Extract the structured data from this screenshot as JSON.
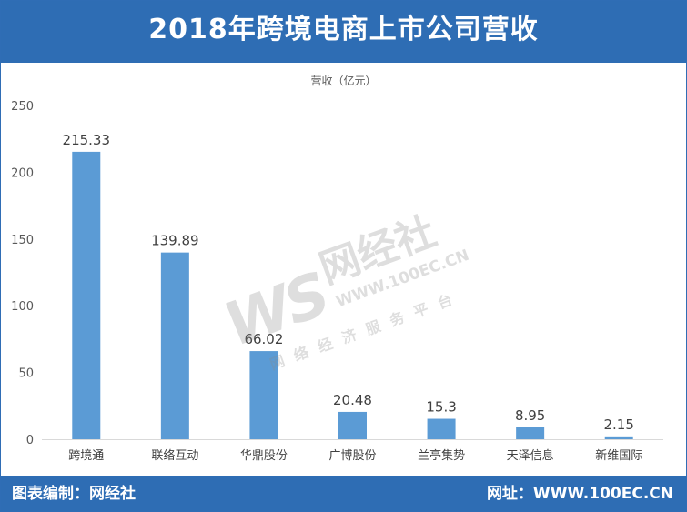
{
  "header": {
    "title": "2018年跨境电商上市公司营收"
  },
  "footer": {
    "left_text": "图表编制：网经社",
    "right_text": "网址：WWW.100EC.CN"
  },
  "watermark": {
    "logo": "WS",
    "name": "网经社",
    "url": "WWW.100EC.CN",
    "subtitle": "网络经济服务平台"
  },
  "chart_data": {
    "type": "bar",
    "title": "营收（亿元）",
    "xlabel": "",
    "ylabel": "",
    "categories": [
      "跨境通",
      "联络互动",
      "华鼎股份",
      "广博股份",
      "兰亭集势",
      "天泽信息",
      "新维国际"
    ],
    "values": [
      215.33,
      139.89,
      66.02,
      20.48,
      15.3,
      8.95,
      2.15
    ],
    "value_labels": [
      "215.33",
      "139.89",
      "66.02",
      "20.48",
      "15.3",
      "8.95",
      "2.15"
    ],
    "ylim": [
      0,
      250
    ],
    "yticks": [
      0,
      50,
      100,
      150,
      200,
      250
    ],
    "grid": false,
    "legend": "none",
    "bar_color": "#5b9bd5",
    "axis_color": "#d9d9d9"
  }
}
